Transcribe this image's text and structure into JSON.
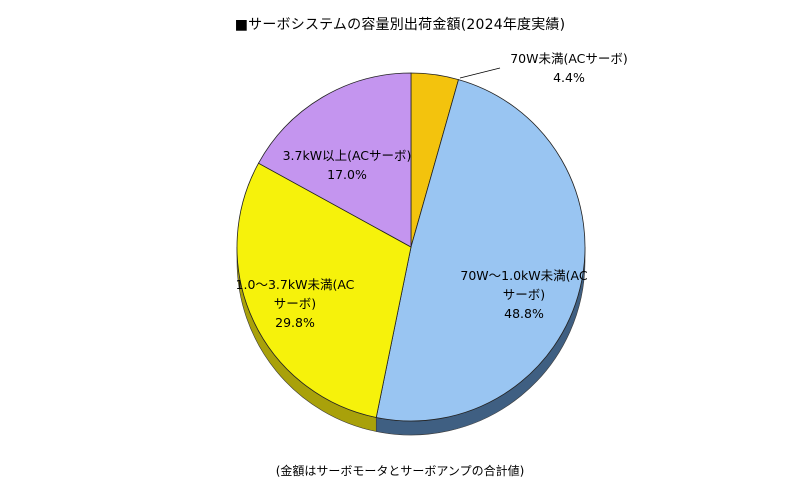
{
  "chart_data": {
    "type": "pie",
    "title": "■サーボシステムの容量別出荷金額(2024年度実績)",
    "footnote": "(金額はサーボモータとサーボアンプの合計値)",
    "legend": "none",
    "slices": [
      {
        "id": "70w-under",
        "label_lines": [
          "70W未満(ACサーボ)"
        ],
        "value_text": "4.4%",
        "value": 4.4,
        "color": "#f3c30d",
        "side": "#b08c06"
      },
      {
        "id": "70w-1kw",
        "label_lines": [
          "70W～1.0kW未満(AC",
          "サーボ)"
        ],
        "value_text": "48.8%",
        "value": 48.8,
        "color": "#99c5f2",
        "side": "#3f5f82"
      },
      {
        "id": "1kw-3-7kw",
        "label_lines": [
          "1.0～3.7kW未満(AC",
          "サーボ)"
        ],
        "value_text": "29.8%",
        "value": 29.8,
        "color": "#f6f20b",
        "side": "#a9a10a"
      },
      {
        "id": "3-7kw-over",
        "label_lines": [
          "3.7kW以上(ACサーボ)"
        ],
        "value_text": "17.0%",
        "value": 17.0,
        "color": "#c495ef",
        "side": "#7d55a8"
      }
    ]
  }
}
